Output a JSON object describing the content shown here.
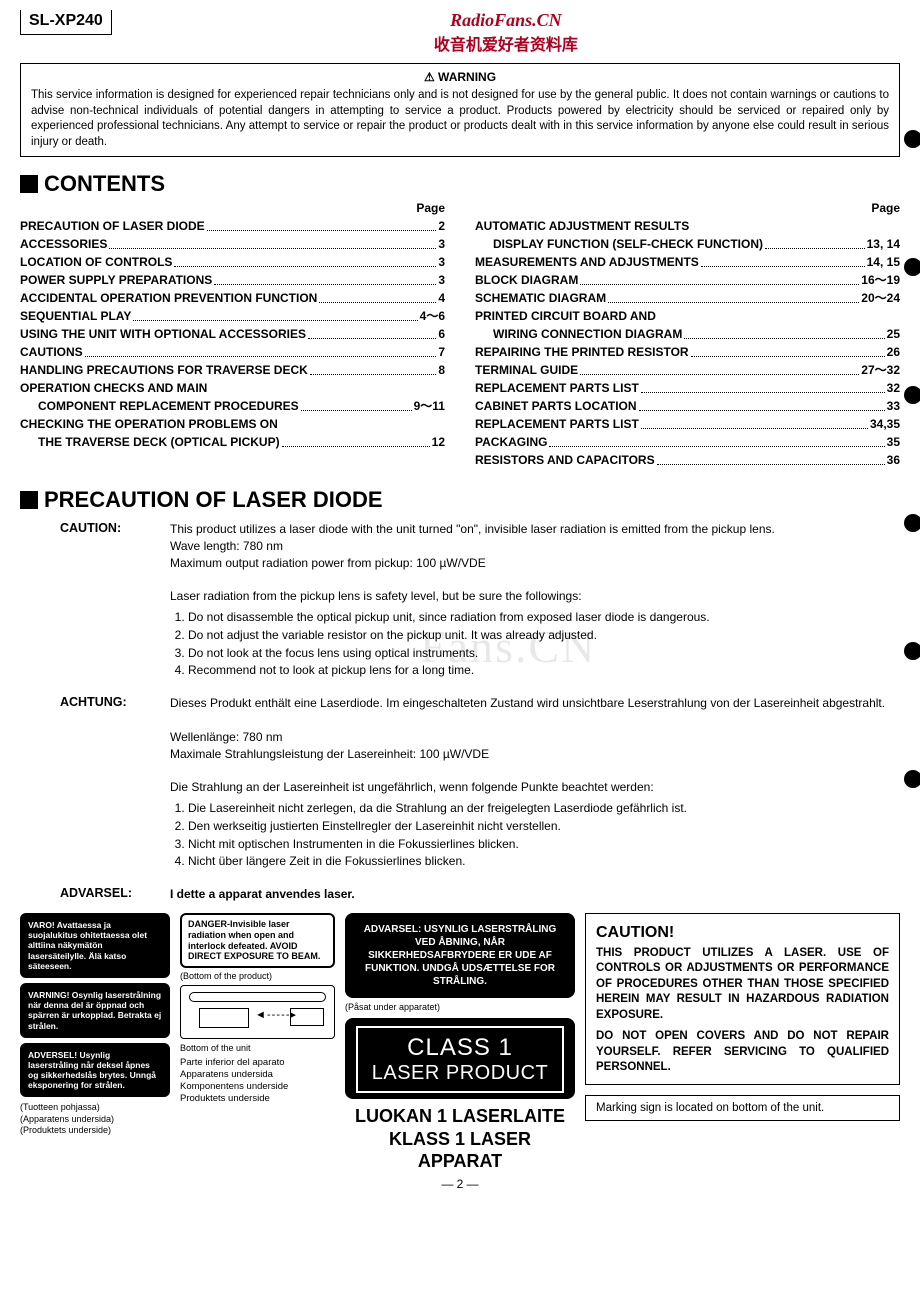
{
  "header": {
    "model": "SL-XP240",
    "brand_line1": "RadioFans.CN",
    "brand_line2": "收音机爱好者资料库"
  },
  "warning": {
    "title": "⚠ WARNING",
    "text": "This service information is designed for experienced repair technicians only and is not designed for use by the general public. It does not contain warnings or cautions to advise non-technical individuals of potential dangers in attempting to service a product. Products powered by electricity should be serviced or repaired only by experienced professional technicians. Any attempt to service or repair the product or products dealt with in this service information by anyone else could result in serious injury or death."
  },
  "contents": {
    "title": "CONTENTS",
    "page_label": "Page",
    "left": [
      {
        "label": "PRECAUTION OF LASER DIODE",
        "page": "2"
      },
      {
        "label": "ACCESSORIES",
        "page": "3"
      },
      {
        "label": "LOCATION OF CONTROLS",
        "page": "3"
      },
      {
        "label": "POWER SUPPLY PREPARATIONS",
        "page": "3"
      },
      {
        "label": "ACCIDENTAL OPERATION PREVENTION FUNCTION",
        "page": "4"
      },
      {
        "label": "SEQUENTIAL PLAY",
        "page": "4～6"
      },
      {
        "label": "USING THE UNIT WITH OPTIONAL ACCESSORIES",
        "page": "6"
      },
      {
        "label": "CAUTIONS",
        "page": "7"
      },
      {
        "label": "HANDLING PRECAUTIONS FOR TRAVERSE DECK",
        "page": "8"
      },
      {
        "label": "OPERATION CHECKS AND MAIN",
        "page": ""
      },
      {
        "label": "COMPONENT REPLACEMENT PROCEDURES",
        "page": "9～11",
        "indent": true
      },
      {
        "label": "CHECKING THE OPERATION PROBLEMS ON",
        "page": ""
      },
      {
        "label": "THE TRAVERSE DECK (OPTICAL PICKUP)",
        "page": "12",
        "indent": true
      }
    ],
    "right": [
      {
        "label": "AUTOMATIC ADJUSTMENT RESULTS",
        "page": ""
      },
      {
        "label": "DISPLAY FUNCTION (SELF-CHECK FUNCTION)",
        "page": "13, 14",
        "indent": true
      },
      {
        "label": "MEASUREMENTS AND ADJUSTMENTS",
        "page": "14, 15"
      },
      {
        "label": "BLOCK DIAGRAM",
        "page": "16～19"
      },
      {
        "label": "SCHEMATIC DIAGRAM",
        "page": "20～24"
      },
      {
        "label": "PRINTED CIRCUIT BOARD AND",
        "page": ""
      },
      {
        "label": "WIRING CONNECTION DIAGRAM",
        "page": "25",
        "indent": true
      },
      {
        "label": "REPAIRING THE PRINTED RESISTOR",
        "page": "26"
      },
      {
        "label": "TERMINAL GUIDE",
        "page": "27～32"
      },
      {
        "label": "REPLACEMENT PARTS LIST",
        "page": "32"
      },
      {
        "label": "CABINET PARTS LOCATION",
        "page": "33"
      },
      {
        "label": "REPLACEMENT PARTS LIST",
        "page": "34,35"
      },
      {
        "label": "PACKAGING",
        "page": "35"
      },
      {
        "label": "RESISTORS AND CAPACITORS",
        "page": "36"
      }
    ]
  },
  "precaution": {
    "title": "PRECAUTION OF LASER DIODE",
    "caution_label": "CAUTION:",
    "caution_p1": "This product utilizes a laser diode with the unit turned \"on\", invisible laser radiation is emitted from the pickup lens.",
    "caution_p2": "Wave length: 780 nm",
    "caution_p3": "Maximum output radiation power from pickup: 100 µW/VDE",
    "caution_p4": "Laser radiation from the pickup lens is safety level, but be sure the followings:",
    "caution_list": [
      "Do not disassemble the optical pickup unit, since radiation from exposed laser diode is dangerous.",
      "Do not adjust the variable resistor on the pickup unit.   It was already adjusted.",
      "Do not look at the focus lens using optical instruments.",
      "Recommend not to look at pickup lens for a long time."
    ],
    "achtung_label": "ACHTUNG:",
    "achtung_p1": "Dieses Produkt enthält eine Laserdiode.   Im eingeschalteten Zustand wird unsichtbare Leserstrahlung von der Lasereinheit abgestrahlt.",
    "achtung_p2": "Wellenlänge: 780 nm",
    "achtung_p3": "Maximale Strahlungsleistung der Lasereinheit: 100 µW/VDE",
    "achtung_p4": "Die Strahlung an der Lasereinheit ist ungefährlich, wenn folgende Punkte beachtet werden:",
    "achtung_list": [
      "Die Lasereinheit nicht zerlegen, da die Strahlung an der freigelegten Laserdiode gefährlich ist.",
      "Den werkseitig justierten Einstellregler der Lasereinhit nicht verstellen.",
      "Nicht mit optischen Instrumenten in die Fokussierlines blicken.",
      "Nicht über längere Zeit in die Fokussierlines blicken."
    ],
    "advarsel_label": "ADVARSEL:",
    "advarsel_text": "I dette a apparat anvendes laser."
  },
  "labels": {
    "varo": "VARO!  Avattaessa ja suojalukitus ohitettaessa olet alttiina näkymätön lasersäteilylle. Älä katso säteeseen.",
    "varning": "VARNING!  Osynlig laserstrålning när denna del är öppnad och spärren är urkopplad. Betrakta ej strålen.",
    "adversel": "ADVERSEL!  Usynlig laserstråling når deksel åpnes og sikkerhedslås brytes.     Unngå eksponering for strålen.",
    "under_col_a": "(Tuotteen pohjassa)\n(Apparatens undersida)\n(Produktets underside)",
    "danger": "DANGER-Invisible laser radiation when open and interlock defeated. AVOID DIRECT EXPOSURE TO BEAM.",
    "bottom_of_product": "(Bottom of the product)",
    "cd_arrows": "◄ - - - - - ▸",
    "bottom_unit": "Bottom of the unit",
    "multi_caption": "Parte inferior del aparato\nApparatens undersida\nKomponentens underside\nProduktets underside",
    "advarsel_black": "ADVARSEL: USYNLIG LASERSTRÅLING VED ÅBNING, NÅR SIKKERHEDSAFBRYDERE ER UDE AF FUNKTION. UNDGÅ UDSÆTTELSE FOR STRÅLING.",
    "pasat": "(Påsat under apparatet)",
    "class1_l1": "CLASS 1",
    "class1_l2": "LASER PRODUCT",
    "luokan_l1": "LUOKAN 1 LASERLAITE",
    "luokan_l2": "KLASS 1 LASER APPARAT",
    "caution_h": "CAUTION!",
    "caution_body": "THIS PRODUCT UTILIZES A LASER. USE OF CONTROLS OR ADJUSTMENTS OR PERFORMANCE OF PROCEDURES OTHER THAN THOSE SPECIFIED HEREIN MAY RESULT IN HAZARDOUS RADIATION EXPOSURE.",
    "caution_body2": "DO NOT OPEN COVERS AND DO NOT REPAIR YOURSELF. REFER SERVICING TO QUALIFIED PERSONNEL.",
    "marking": "Marking sign is located on bottom of the unit."
  },
  "watermark": "Fans.CN",
  "page_number": "— 2 —",
  "colors": {
    "brand": "#b00020",
    "text": "#000000",
    "bg": "#ffffff"
  }
}
